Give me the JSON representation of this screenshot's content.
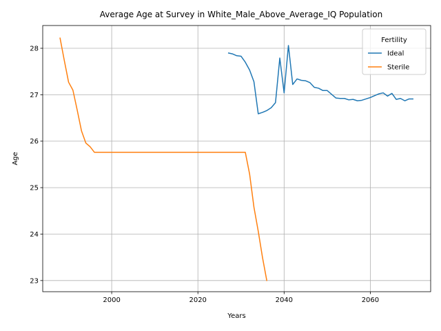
{
  "chart_data": {
    "type": "line",
    "title": "Average Age at Survey in White_Male_Above_Average_IQ Population",
    "xlabel": "Years",
    "ylabel": "Age",
    "xlim": [
      1984,
      2074
    ],
    "ylim": [
      22.76,
      28.49
    ],
    "xticks": [
      2000,
      2020,
      2040,
      2060
    ],
    "yticks": [
      23,
      24,
      25,
      26,
      27,
      28
    ],
    "grid": true,
    "legend": {
      "title": "Fertility",
      "placement": "top-right"
    },
    "series": [
      {
        "name": "Ideal",
        "color": "#1f77b4",
        "x": [
          2027,
          2028,
          2029,
          2030,
          2031,
          2032,
          2033,
          2034,
          2035,
          2036,
          2037,
          2038,
          2039,
          2040,
          2041,
          2042,
          2043,
          2044,
          2045,
          2046,
          2047,
          2048,
          2049,
          2050,
          2051,
          2052,
          2053,
          2054,
          2055,
          2056,
          2057,
          2058,
          2059,
          2060,
          2061,
          2062,
          2063,
          2064,
          2065,
          2066,
          2067,
          2068,
          2069,
          2070
        ],
        "y": [
          27.9,
          27.88,
          27.84,
          27.83,
          27.7,
          27.53,
          27.28,
          26.59,
          26.62,
          26.66,
          26.72,
          26.83,
          27.79,
          27.04,
          28.06,
          27.22,
          27.34,
          27.31,
          27.3,
          27.26,
          27.16,
          27.14,
          27.09,
          27.09,
          27.01,
          26.93,
          26.92,
          26.92,
          26.89,
          26.9,
          26.87,
          26.88,
          26.91,
          26.94,
          26.98,
          27.02,
          27.04,
          26.97,
          27.03,
          26.9,
          26.92,
          26.87,
          26.91,
          26.91
        ]
      },
      {
        "name": "Sterile",
        "color": "#ff7f0e",
        "x": [
          1988,
          1989,
          1990,
          1991,
          1992,
          1993,
          1994,
          1995,
          1996,
          1997,
          1998,
          2000,
          2005,
          2010,
          2015,
          2020,
          2025,
          2030,
          2031,
          2032,
          2033,
          2034,
          2035,
          2036
        ],
        "y": [
          28.23,
          27.74,
          27.27,
          27.1,
          26.67,
          26.22,
          25.96,
          25.88,
          25.76,
          25.76,
          25.76,
          25.76,
          25.76,
          25.76,
          25.76,
          25.76,
          25.76,
          25.76,
          25.76,
          25.29,
          24.58,
          24.06,
          23.49,
          22.99
        ]
      }
    ]
  }
}
